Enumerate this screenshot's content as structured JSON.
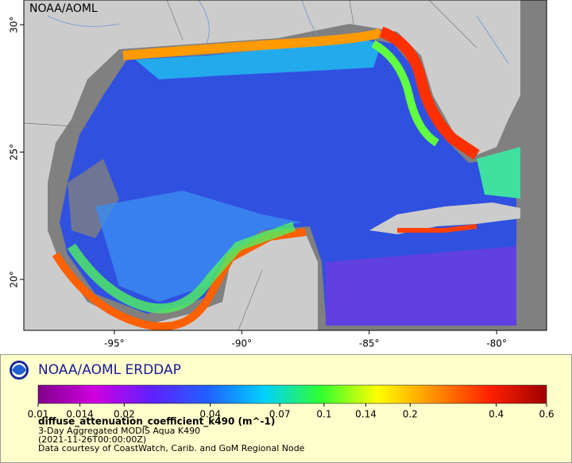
{
  "map": {
    "title": "NOAA/AOML",
    "xlim": [
      -98.55,
      -78.04
    ],
    "ylim": [
      18.0,
      30.97
    ],
    "xticks": [
      {
        "value": -95,
        "label": "-95°"
      },
      {
        "value": -90,
        "label": "-90°"
      },
      {
        "value": -85,
        "label": "-85°"
      },
      {
        "value": -80,
        "label": "-80°"
      }
    ],
    "yticks": [
      {
        "value": 20,
        "label": "20°"
      },
      {
        "value": 25,
        "label": "25°"
      },
      {
        "value": 30,
        "label": "30°"
      }
    ]
  },
  "legend": {
    "brand": "NOAA/AOML ERDDAP",
    "variable": "diffuse_attenuation_coefficient_k490 (m^-1)",
    "lines": [
      "3-Day Aggregated MODIS Aqua K490",
      "(2021-11-26T00:00:00Z)",
      "Data courtesy of CoastWatch, Carib. and GoM Regional Node"
    ]
  },
  "colorbar": {
    "scale": "log",
    "lim": [
      0.01,
      0.6
    ],
    "ticks": [
      0.01,
      0.014,
      0.02,
      0.04,
      0.07,
      0.1,
      0.14,
      0.2,
      0.4,
      0.6
    ],
    "colors": [
      "#80008c",
      "#d000e0",
      "#6020ff",
      "#2060ff",
      "#00d0ff",
      "#30ff30",
      "#ffff00",
      "#ff9000",
      "#ff2000",
      "#a00000"
    ]
  }
}
